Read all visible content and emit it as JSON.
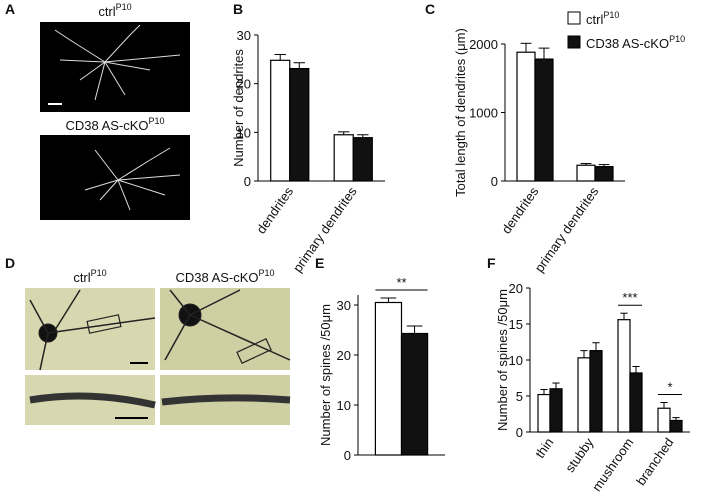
{
  "panel_labels": [
    "A",
    "B",
    "C",
    "D",
    "E",
    "F"
  ],
  "images": [
    {
      "caption": "ctrl",
      "sup": "P10"
    },
    {
      "caption": "CD38 AS-cKO",
      "sup": "P10"
    },
    {
      "caption": "ctrl",
      "sup": "P10"
    },
    {
      "caption": "CD38 AS-cKO",
      "sup": "P10"
    }
  ],
  "chart_data": [
    {
      "type": "bar",
      "y_label": "Number of dendrites",
      "categories": [
        "dendrites",
        "primary dendrites"
      ],
      "series": [
        {
          "name": "ctrl",
          "name_sup": "P10",
          "color": "#ffffff",
          "values": [
            24.8,
            9.5
          ],
          "errors": [
            1.2,
            0.6
          ]
        },
        {
          "name": "CD38 AS-cKO",
          "name_sup": "P10",
          "color": "#111111",
          "values": [
            23.1,
            8.9
          ],
          "errors": [
            1.2,
            0.6
          ]
        }
      ],
      "ylim": [
        0,
        30
      ],
      "yticks": [
        0,
        10,
        20,
        30
      ]
    },
    {
      "type": "bar",
      "y_label": "Total length of dendrites (μm)",
      "categories": [
        "dendrites",
        "primary dendrites"
      ],
      "series": [
        {
          "name": "ctrl",
          "name_sup": "P10",
          "color": "#ffffff",
          "values": [
            1880,
            230
          ],
          "errors": [
            130,
            25
          ]
        },
        {
          "name": "CD38 AS-cKO",
          "name_sup": "P10",
          "color": "#111111",
          "values": [
            1780,
            210
          ],
          "errors": [
            160,
            30
          ]
        }
      ],
      "ylim": [
        0,
        2000
      ],
      "yticks": [
        0,
        1000,
        2000
      ],
      "legend": "top-right"
    },
    {
      "type": "bar",
      "y_label": "Number of spines /50μm",
      "categories": [
        null
      ],
      "series": [
        {
          "name": "ctrl",
          "color": "#ffffff",
          "values": [
            30.5
          ],
          "errors": [
            0.9
          ]
        },
        {
          "name": "CD38 AS-cKO",
          "color": "#111111",
          "values": [
            24.3
          ],
          "errors": [
            1.5
          ]
        }
      ],
      "annotations": [
        "**"
      ],
      "ylim": [
        0,
        32
      ],
      "yticks": [
        0,
        10,
        20,
        30
      ]
    },
    {
      "type": "bar",
      "y_label": "Number of spines /50μm",
      "categories": [
        "thin",
        "stubby",
        "mushroom",
        "branched"
      ],
      "series": [
        {
          "name": "ctrl",
          "color": "#ffffff",
          "values": [
            5.2,
            10.3,
            15.6,
            3.3
          ],
          "errors": [
            0.7,
            1.0,
            0.9,
            0.8
          ]
        },
        {
          "name": "CD38 AS-cKO",
          "color": "#111111",
          "values": [
            6.0,
            11.3,
            8.2,
            1.6
          ],
          "errors": [
            0.8,
            1.1,
            0.9,
            0.4
          ]
        }
      ],
      "annotations": [
        "***",
        "*"
      ],
      "ylim": [
        0,
        20
      ],
      "yticks": [
        0,
        5,
        10,
        15,
        20
      ]
    }
  ]
}
